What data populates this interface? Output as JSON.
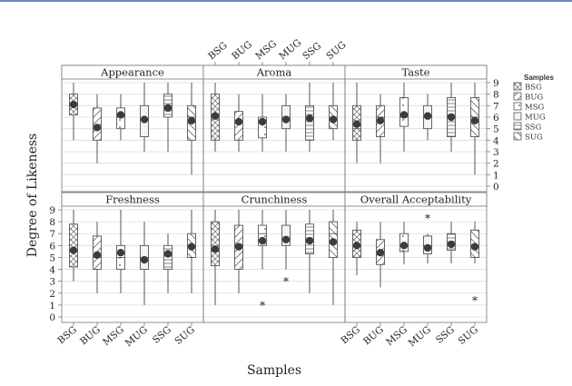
{
  "chart_data": {
    "type": "boxplot",
    "title": "",
    "xlabel": "Samples",
    "ylabel": "Degree of Likeness",
    "categories": [
      "BSG",
      "BUG",
      "MSG",
      "MUG",
      "SSG",
      "SUG"
    ],
    "ylim": [
      0,
      9
    ],
    "yticks": [
      0,
      1,
      2,
      3,
      4,
      5,
      6,
      7,
      8,
      9
    ],
    "grid": true,
    "legend": {
      "title": "Samples",
      "position": "right",
      "entries": [
        {
          "label": "BSG",
          "pattern": "cross"
        },
        {
          "label": "BUG",
          "pattern": "diag"
        },
        {
          "label": "MSG",
          "pattern": "dots"
        },
        {
          "label": "MUG",
          "pattern": "none"
        },
        {
          "label": "SSG",
          "pattern": "horiz"
        },
        {
          "label": "SUG",
          "pattern": "diag-back"
        }
      ]
    },
    "panels": [
      {
        "title": "Appearance",
        "boxes": [
          {
            "category": "BSG",
            "min": 4,
            "q1": 6.2,
            "median": 7,
            "q3": 8,
            "max": 9,
            "mean": 7.1
          },
          {
            "category": "BUG",
            "min": 2,
            "q1": 4,
            "median": 5,
            "q3": 6.8,
            "max": 8,
            "mean": 5.1
          },
          {
            "category": "MSG",
            "min": 4,
            "q1": 5,
            "median": 6,
            "q3": 6.8,
            "max": 8,
            "mean": 6.2
          },
          {
            "category": "MUG",
            "min": 3,
            "q1": 4.3,
            "median": 5.8,
            "q3": 7,
            "max": 9,
            "mean": 5.8
          },
          {
            "category": "SSG",
            "min": 3,
            "q1": 6,
            "median": 7,
            "q3": 8,
            "max": 9,
            "mean": 6.8
          },
          {
            "category": "SUG",
            "min": 1,
            "q1": 4,
            "median": 6,
            "q3": 7,
            "max": 9,
            "mean": 5.7
          }
        ],
        "outliers": []
      },
      {
        "title": "Aroma",
        "boxes": [
          {
            "category": "BSG",
            "min": 3,
            "q1": 4,
            "median": 6,
            "q3": 8,
            "max": 9,
            "mean": 6.1
          },
          {
            "category": "BUG",
            "min": 3,
            "q1": 4,
            "median": 5.5,
            "q3": 6.5,
            "max": 8,
            "mean": 5.6
          },
          {
            "category": "MSG",
            "min": 3,
            "q1": 4.2,
            "median": 5.5,
            "q3": 6,
            "max": 8,
            "mean": 5.6
          },
          {
            "category": "MUG",
            "min": 3,
            "q1": 5,
            "median": 6,
            "q3": 7,
            "max": 8,
            "mean": 5.8
          },
          {
            "category": "SSG",
            "min": 3,
            "q1": 4,
            "median": 6,
            "q3": 7,
            "max": 9,
            "mean": 5.9
          },
          {
            "category": "SUG",
            "min": 4,
            "q1": 5,
            "median": 6,
            "q3": 7,
            "max": 9,
            "mean": 5.8
          }
        ],
        "outliers": []
      },
      {
        "title": "Taste",
        "boxes": [
          {
            "category": "BSG",
            "min": 2,
            "q1": 4,
            "median": 5,
            "q3": 7,
            "max": 9,
            "mean": 5.4
          },
          {
            "category": "BUG",
            "min": 2,
            "q1": 4.3,
            "median": 6,
            "q3": 7,
            "max": 8,
            "mean": 5.7
          },
          {
            "category": "MSG",
            "min": 3,
            "q1": 5.2,
            "median": 6,
            "q3": 7.7,
            "max": 9,
            "mean": 6.2
          },
          {
            "category": "MUG",
            "min": 4,
            "q1": 5,
            "median": 6,
            "q3": 7,
            "max": 8,
            "mean": 6.1
          },
          {
            "category": "SSG",
            "min": 3,
            "q1": 4.3,
            "median": 6,
            "q3": 7.7,
            "max": 9,
            "mean": 6.0
          },
          {
            "category": "SUG",
            "min": 1,
            "q1": 4.3,
            "median": 6,
            "q3": 7.7,
            "max": 9,
            "mean": 5.7
          }
        ],
        "outliers": []
      },
      {
        "title": "Freshness",
        "boxes": [
          {
            "category": "BSG",
            "min": 3,
            "q1": 4.2,
            "median": 5.5,
            "q3": 7.8,
            "max": 9,
            "mean": 5.6
          },
          {
            "category": "BUG",
            "min": 2,
            "q1": 4,
            "median": 5,
            "q3": 6.8,
            "max": 8,
            "mean": 5.2
          },
          {
            "category": "MSG",
            "min": 2,
            "q1": 4,
            "median": 5,
            "q3": 6,
            "max": 9,
            "mean": 5.4
          },
          {
            "category": "MUG",
            "min": 1,
            "q1": 4,
            "median": 5,
            "q3": 6,
            "max": 8,
            "mean": 4.8
          },
          {
            "category": "SSG",
            "min": 2,
            "q1": 4,
            "median": 5.2,
            "q3": 6,
            "max": 7,
            "mean": 5.3
          },
          {
            "category": "SUG",
            "min": 2,
            "q1": 5,
            "median": 6,
            "q3": 7,
            "max": 9,
            "mean": 5.9
          }
        ],
        "outliers": []
      },
      {
        "title": "Crunchiness",
        "boxes": [
          {
            "category": "BSG",
            "min": 1,
            "q1": 4.3,
            "median": 5.5,
            "q3": 8,
            "max": 9,
            "mean": 5.7
          },
          {
            "category": "BUG",
            "min": 2,
            "q1": 4,
            "median": 6,
            "q3": 7.7,
            "max": 9,
            "mean": 5.9
          },
          {
            "category": "MSG",
            "min": 4,
            "q1": 6,
            "median": 7,
            "q3": 7.7,
            "max": 9,
            "mean": 6.4
          },
          {
            "category": "MUG",
            "min": 4,
            "q1": 6,
            "median": 6.5,
            "q3": 7.7,
            "max": 9,
            "mean": 6.5
          },
          {
            "category": "SSG",
            "min": 2,
            "q1": 5.3,
            "median": 6.5,
            "q3": 7.8,
            "max": 9,
            "mean": 6.4
          },
          {
            "category": "SUG",
            "min": 1,
            "q1": 5,
            "median": 7,
            "q3": 8,
            "max": 9,
            "mean": 6.3
          }
        ],
        "outliers": [
          {
            "category": "MSG",
            "value": 1
          },
          {
            "category": "MUG",
            "value": 3
          }
        ]
      },
      {
        "title": "Overall Acceptability",
        "boxes": [
          {
            "category": "BSG",
            "min": 3.5,
            "q1": 5,
            "median": 6,
            "q3": 7.3,
            "max": 8,
            "mean": 6.0
          },
          {
            "category": "BUG",
            "min": 2.5,
            "q1": 4.4,
            "median": 5.5,
            "q3": 6.5,
            "max": 8,
            "mean": 5.4
          },
          {
            "category": "MSG",
            "min": 4.4,
            "q1": 5.5,
            "median": 6,
            "q3": 7,
            "max": 8,
            "mean": 6.0
          },
          {
            "category": "MUG",
            "min": 4.5,
            "q1": 5.3,
            "median": 6,
            "q3": 6.8,
            "max": 7,
            "mean": 5.8
          },
          {
            "category": "SSG",
            "min": 4.5,
            "q1": 5.6,
            "median": 6.2,
            "q3": 7,
            "max": 8,
            "mean": 6.1
          },
          {
            "category": "SUG",
            "min": 4.5,
            "q1": 5,
            "median": 6,
            "q3": 7.3,
            "max": 8,
            "mean": 5.9
          }
        ],
        "outliers": [
          {
            "category": "MUG",
            "value": 8.3
          },
          {
            "category": "SUG",
            "value": 1.4
          }
        ]
      }
    ]
  }
}
